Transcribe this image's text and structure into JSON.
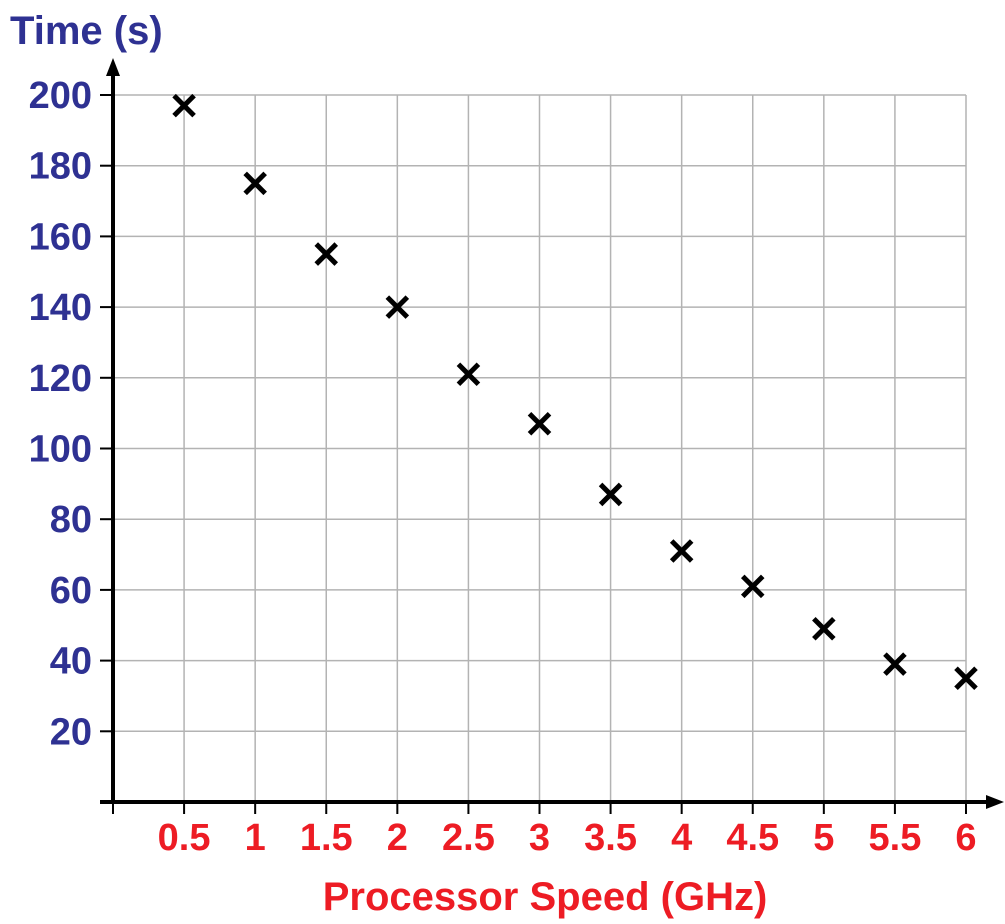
{
  "chart_data": {
    "type": "scatter",
    "title": "",
    "ylabel": "Time (s)",
    "xlabel": "Processor Speed (GHz)",
    "x_ticks": [
      "0.5",
      "1",
      "1.5",
      "2",
      "2.5",
      "3",
      "3.5",
      "4",
      "4.5",
      "5",
      "5.5",
      "6"
    ],
    "y_ticks": [
      "20",
      "40",
      "60",
      "80",
      "100",
      "120",
      "140",
      "160",
      "180",
      "200"
    ],
    "xlim": [
      0,
      6
    ],
    "ylim": [
      0,
      200
    ],
    "grid": true,
    "marker": "x",
    "series": [
      {
        "x": [
          0.5,
          1,
          1.5,
          2,
          2.5,
          3,
          3.5,
          4,
          4.5,
          5,
          5.5,
          6
        ],
        "y": [
          197,
          175,
          155,
          140,
          121,
          107,
          87,
          71,
          61,
          49,
          39,
          35
        ]
      }
    ],
    "colors": {
      "y_labels": "#2e3192",
      "x_labels": "#ed1c24",
      "points": "#000000",
      "grid": "#b3b3b3"
    }
  }
}
